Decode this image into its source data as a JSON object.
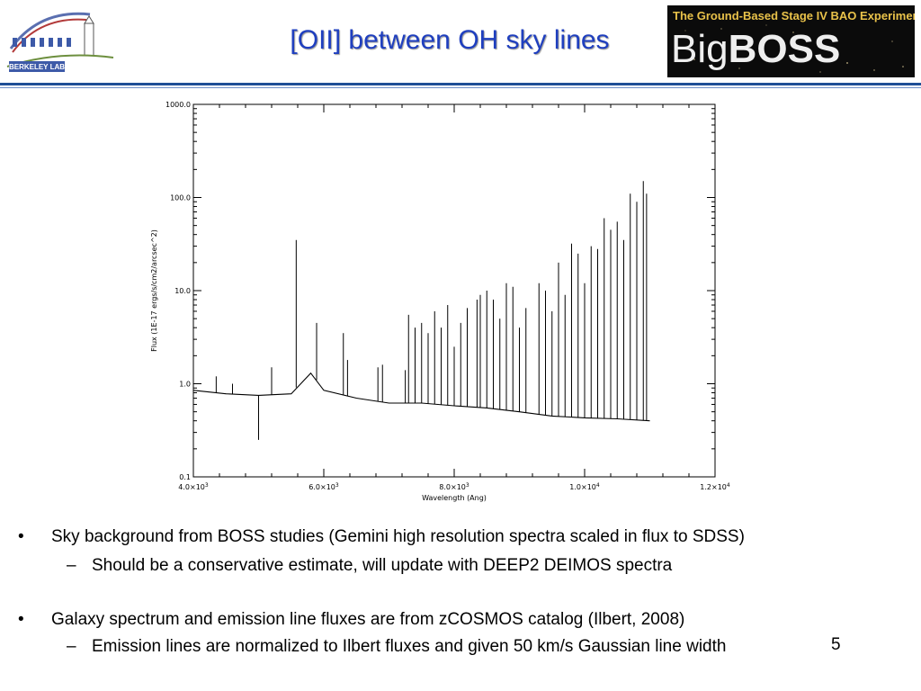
{
  "header": {
    "title": "[OII] between OH sky lines",
    "lbl_logo_text": "BERKELEY LAB",
    "bigboss_strap": "The Ground-Based Stage IV BAO Experiment",
    "bigboss_word_a": "Big",
    "bigboss_word_b": "BOSS"
  },
  "chart_data": {
    "type": "line",
    "xlabel": "Wavelength (Ang)",
    "ylabel": "Flux (1E-17 ergs/s/cm2/arcsec^2)",
    "xlim": [
      4000,
      12000
    ],
    "ylim": [
      0.1,
      1000
    ],
    "yscale": "log",
    "x_ticks": [
      4000,
      6000,
      8000,
      10000,
      12000
    ],
    "x_tick_labels": [
      {
        "m": "4.0×10",
        "e": "3"
      },
      {
        "m": "6.0×10",
        "e": "3"
      },
      {
        "m": "8.0×10",
        "e": "3"
      },
      {
        "m": "1.0×10",
        "e": "4"
      },
      {
        "m": "1.2×10",
        "e": "4"
      }
    ],
    "y_ticks": [
      0.1,
      1.0,
      10.0,
      100.0,
      1000.0
    ],
    "y_tick_labels": [
      "0.1",
      "1.0",
      "10.0",
      "100.0",
      "1000.0"
    ],
    "grid": false,
    "series": [
      {
        "color": "#000000",
        "continuum": [
          [
            4000,
            0.85
          ],
          [
            4500,
            0.78
          ],
          [
            5000,
            0.75
          ],
          [
            5500,
            0.78
          ],
          [
            5800,
            1.3
          ],
          [
            6000,
            0.85
          ],
          [
            6500,
            0.7
          ],
          [
            7000,
            0.62
          ],
          [
            7500,
            0.62
          ],
          [
            8000,
            0.58
          ],
          [
            8500,
            0.55
          ],
          [
            9000,
            0.5
          ],
          [
            9500,
            0.45
          ],
          [
            10000,
            0.43
          ],
          [
            10500,
            0.42
          ],
          [
            11000,
            0.4
          ]
        ],
        "lines": [
          [
            4350,
            1.2
          ],
          [
            4600,
            1.0
          ],
          [
            5000,
            0.25
          ],
          [
            5200,
            1.5
          ],
          [
            5577,
            35
          ],
          [
            5890,
            4.5
          ],
          [
            6300,
            3.5
          ],
          [
            6364,
            1.8
          ],
          [
            6830,
            1.5
          ],
          [
            6900,
            1.6
          ],
          [
            7250,
            1.4
          ],
          [
            7300,
            5.5
          ],
          [
            7400,
            4.0
          ],
          [
            7500,
            4.5
          ],
          [
            7600,
            3.5
          ],
          [
            7700,
            6.0
          ],
          [
            7800,
            4.0
          ],
          [
            7900,
            7.0
          ],
          [
            8000,
            2.5
          ],
          [
            8100,
            4.5
          ],
          [
            8200,
            6.5
          ],
          [
            8350,
            8.0
          ],
          [
            8400,
            9.0
          ],
          [
            8500,
            10.0
          ],
          [
            8600,
            8.0
          ],
          [
            8700,
            5.0
          ],
          [
            8800,
            12.0
          ],
          [
            8900,
            11.0
          ],
          [
            9000,
            4.0
          ],
          [
            9100,
            6.5
          ],
          [
            9300,
            12.0
          ],
          [
            9400,
            10.0
          ],
          [
            9500,
            6.0
          ],
          [
            9600,
            20.0
          ],
          [
            9700,
            9.0
          ],
          [
            9800,
            32.0
          ],
          [
            9900,
            25.0
          ],
          [
            10000,
            12.0
          ],
          [
            10100,
            30.0
          ],
          [
            10200,
            28.0
          ],
          [
            10300,
            60.0
          ],
          [
            10400,
            45.0
          ],
          [
            10500,
            55.0
          ],
          [
            10600,
            35.0
          ],
          [
            10700,
            110.0
          ],
          [
            10800,
            90.0
          ],
          [
            10900,
            150.0
          ],
          [
            10950,
            110.0
          ]
        ]
      }
    ]
  },
  "bullets": [
    {
      "text": "Sky background from BOSS studies (Gemini high resolution spectra scaled in flux to SDSS)",
      "sub": "Should be a conservative estimate, will update with DEEP2 DEIMOS spectra"
    },
    {
      "text": "Galaxy spectrum and emission line fluxes are from zCOSMOS catalog (Ilbert, 2008)",
      "sub": "Emission lines are normalized to Ilbert fluxes and given 50 km/s Gaussian line width"
    }
  ],
  "bullet_glyph": "•",
  "dash_glyph": "–",
  "page_number": "5"
}
